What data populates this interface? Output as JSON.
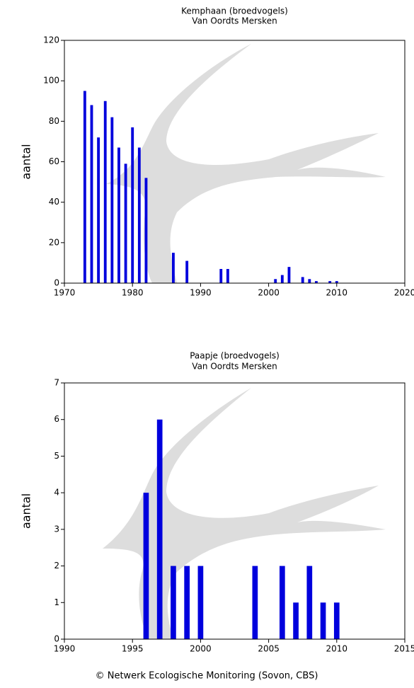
{
  "chart_data": [
    {
      "type": "bar",
      "title": "Kemphaan (broedvogels)",
      "subtitle": "Van Oordts Mersken",
      "y_label": "aantal",
      "color": "#0000dd",
      "x": [
        1973,
        1974,
        1975,
        1976,
        1977,
        1978,
        1979,
        1980,
        1981,
        1982,
        1986,
        1988,
        1993,
        1994,
        2001,
        2002,
        2003,
        2005,
        2006,
        2007,
        2009,
        2010
      ],
      "values": [
        95,
        88,
        72,
        90,
        82,
        67,
        59,
        77,
        67,
        52,
        15,
        11,
        7,
        7,
        2,
        4,
        8,
        3,
        2,
        1,
        1,
        1
      ],
      "xlim": [
        1970,
        2020
      ],
      "xticks": [
        1970,
        1980,
        1990,
        2000,
        2010,
        2020
      ],
      "ylim": [
        0,
        120
      ],
      "yticks": [
        0,
        20,
        40,
        60,
        80,
        100,
        120
      ]
    },
    {
      "type": "bar",
      "title": "Paapje (broedvogels)",
      "subtitle": "Van Oordts Mersken",
      "y_label": "aantal",
      "color": "#0000dd",
      "x": [
        1996,
        1997,
        1998,
        1999,
        2000,
        2004,
        2006,
        2007,
        2008,
        2009,
        2010
      ],
      "values": [
        4,
        6,
        2,
        2,
        2,
        2,
        2,
        1,
        2,
        1,
        1
      ],
      "xlim": [
        1990,
        2015
      ],
      "xticks": [
        1990,
        1995,
        2000,
        2005,
        2010,
        2015
      ],
      "ylim": [
        0,
        7
      ],
      "yticks": [
        0,
        1,
        2,
        3,
        4,
        5,
        6,
        7
      ]
    }
  ],
  "footer": "© Netwerk Ecologische Monitoring (Sovon, CBS)"
}
